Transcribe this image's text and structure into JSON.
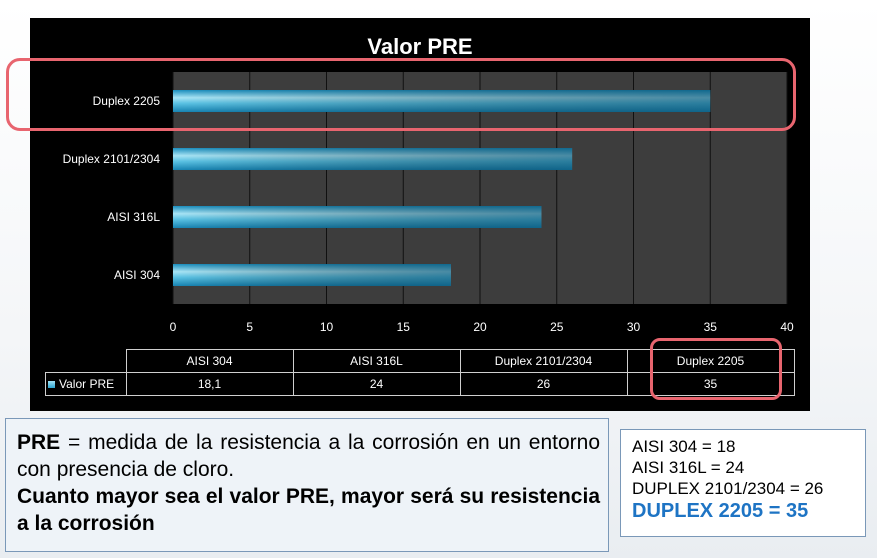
{
  "chart_data": {
    "type": "bar",
    "orientation": "horizontal",
    "title": "Valor PRE",
    "categories": [
      "AISI 304",
      "AISI 316L",
      "Duplex 2101/2304",
      "Duplex 2205"
    ],
    "series": [
      {
        "name": "Valor PRE",
        "values": [
          18.1,
          24,
          26,
          35
        ],
        "display_values": [
          "18,1",
          "24",
          "26",
          "35"
        ]
      }
    ],
    "x_ticks": [
      "0",
      "5",
      "10",
      "15",
      "20",
      "25",
      "30",
      "35",
      "40"
    ],
    "xlim": [
      0,
      40
    ],
    "grid": true,
    "legend": "data-table",
    "bar_color": "#2fa9d4",
    "highlight_color": "#e8656f"
  },
  "definition": {
    "line1_term": "PRE",
    "line1_text": " = medida de la resistencia a la corrosión en un entorno con presencia de cloro.",
    "line2": "Cuanto mayor sea el valor PRE, mayor será su resistencia a la corrosión"
  },
  "values_box": {
    "items": [
      "AISI 304 = 18",
      "AISI 316L = 24",
      "DUPLEX 2101/2304 = 26"
    ],
    "highlight": "DUPLEX 2205  = 35"
  }
}
